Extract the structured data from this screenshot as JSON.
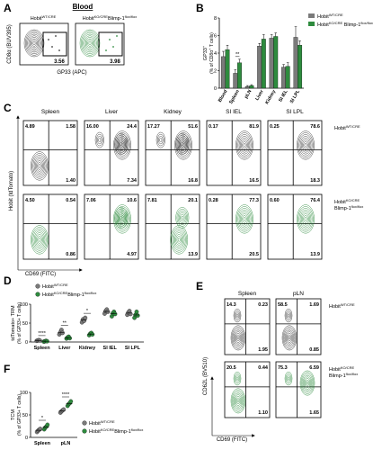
{
  "colors": {
    "wt": "#7a7a7a",
    "ko": "#2e8b3e",
    "ko_dark": "#1d6b2b",
    "wt_dark": "#333333",
    "gate": "#000000"
  },
  "legend": {
    "wt_text": "Hobit",
    "wt_sup": "WT/CRE",
    "ko_text": "Hobit",
    "ko_sup": "KO/CRE",
    "ko_suffix": "Blimp-1",
    "ko_suffix_sup": "flox/flox"
  },
  "panels": {
    "A": {
      "letter": "A",
      "title": "Blood",
      "ylabel": "CD8α (BUV395)",
      "xlabel": "GP33 (APC)",
      "col_labels": [
        "Hobit WT/CRE",
        "Hobit KO/CRE Blimp-1 flox/flox"
      ],
      "gate_values": [
        "3.56",
        "3.98"
      ]
    },
    "B": {
      "letter": "B"
    },
    "C": {
      "letter": "C",
      "ylabel": "Hobit (tdTomato)",
      "xlabel": "CD69 (FITC)",
      "tissues": [
        "Spleen",
        "Liver",
        "Kidney",
        "SI IEL",
        "SI LPL"
      ],
      "rows": [
        {
          "label": "Hobit WT/CRE",
          "quadrants": [
            [
              "4.89",
              "1.58",
              "1.40"
            ],
            [
              "16.00",
              "24.4",
              "7.34"
            ],
            [
              "17.27",
              "51.6",
              "16.8"
            ],
            [
              "0.17",
              "81.9",
              "16.5"
            ],
            [
              "0.25",
              "78.6",
              "18.3"
            ]
          ]
        },
        {
          "label": "Hobit KO/CRE Blimp-1 flox/flox",
          "quadrants": [
            [
              "4.50",
              "0.54",
              "0.86"
            ],
            [
              "7.06",
              "10.6",
              "4.97"
            ],
            [
              "7.81",
              "20.1",
              "13.9"
            ],
            [
              "0.28",
              "77.3",
              "20.5"
            ],
            [
              "0.60",
              "76.4",
              "13.9"
            ]
          ]
        }
      ]
    },
    "D": {
      "letter": "D"
    },
    "E": {
      "letter": "E",
      "ylabel": "CD62L (BV510)",
      "xlabel": "CD69 (FITC)",
      "tissues": [
        "Spleen",
        "pLN"
      ],
      "rows": [
        {
          "label": "Hobit WT/CRE",
          "quadrants": [
            [
              "14.3",
              "0.23",
              "1.95"
            ],
            [
              "58.5",
              "1.69",
              "0.85"
            ]
          ]
        },
        {
          "label": "Hobit KO/CRE Blimp-1 flox/flox",
          "quadrants": [
            [
              "20.5",
              "0.44",
              "1.10"
            ],
            [
              "75.3",
              "6.59",
              "1.65"
            ]
          ]
        }
      ]
    },
    "F": {
      "letter": "F"
    }
  },
  "chart_data": [
    {
      "panel": "B",
      "type": "bar",
      "ylabel": "GP33+ (% of CD8α+ T cells)",
      "ylim": [
        0,
        8
      ],
      "yticks": [
        0,
        2,
        4,
        6,
        8
      ],
      "categories": [
        "Blood",
        "Spleen",
        "pLN",
        "Liver",
        "Kidney",
        "SI IEL",
        "SI LPL"
      ],
      "series": [
        {
          "name": "Hobit WT/CRE",
          "values": [
            3.6,
            1.7,
            0.2,
            4.8,
            5.7,
            2.4,
            5.8
          ],
          "errors": [
            0.6,
            0.4,
            0.1,
            0.3,
            0.4,
            0.3,
            1.2
          ]
        },
        {
          "name": "Hobit KO/CRE Blimp-1 flox/flox",
          "values": [
            4.4,
            2.9,
            0.3,
            5.6,
            5.9,
            2.5,
            4.9
          ],
          "errors": [
            0.5,
            0.4,
            0.1,
            0.5,
            0.4,
            0.4,
            0.5
          ]
        }
      ],
      "annotations": [
        {
          "category": "Spleen",
          "text": "**"
        }
      ]
    },
    {
      "panel": "D",
      "type": "scatter",
      "ylabel": "tdTomato+ TRM (% of GP33+ T cells)",
      "ylim": [
        0,
        100
      ],
      "yticks": [
        0,
        50,
        100
      ],
      "categories": [
        "Spleen",
        "Liver",
        "Kidney",
        "SI IEL",
        "SI LPL"
      ],
      "series": [
        {
          "name": "Hobit WT/CRE",
          "points": [
            [
              3,
              4,
              5,
              4
            ],
            [
              20,
              26,
              32,
              24
            ],
            [
              52,
              60,
              56,
              64
            ],
            [
              75,
              82,
              86,
              80
            ],
            [
              72,
              78,
              82,
              74
            ]
          ]
        },
        {
          "name": "Hobit KO/CRE Blimp-1 flox/flox",
          "points": [
            [
              1,
              2,
              3,
              2
            ],
            [
              9,
              12,
              14,
              10
            ],
            [
              18,
              22,
              24,
              20
            ],
            [
              68,
              76,
              80,
              74
            ],
            [
              64,
              72,
              80,
              70
            ]
          ]
        }
      ],
      "annotations": [
        {
          "category": "Spleen",
          "text": "****"
        },
        {
          "category": "Liver",
          "text": "**"
        },
        {
          "category": "Kidney",
          "text": "*"
        }
      ]
    },
    {
      "panel": "F",
      "type": "scatter",
      "ylabel": "TCM (% of GP33+ T cells)",
      "ylim": [
        0,
        100
      ],
      "yticks": [
        0,
        50,
        100
      ],
      "categories": [
        "Spleen",
        "pLN"
      ],
      "series": [
        {
          "name": "Hobit WT/CRE",
          "points": [
            [
              12,
              15,
              17,
              19
            ],
            [
              55,
              58,
              60,
              62
            ]
          ]
        },
        {
          "name": "Hobit KO/CRE Blimp-1 flox/flox",
          "points": [
            [
              18,
              22,
              24,
              28
            ],
            [
              70,
              74,
              76,
              80
            ]
          ]
        }
      ],
      "annotations": [
        {
          "category": "Spleen",
          "text": "*"
        },
        {
          "category": "pLN",
          "text": "****"
        }
      ]
    }
  ]
}
